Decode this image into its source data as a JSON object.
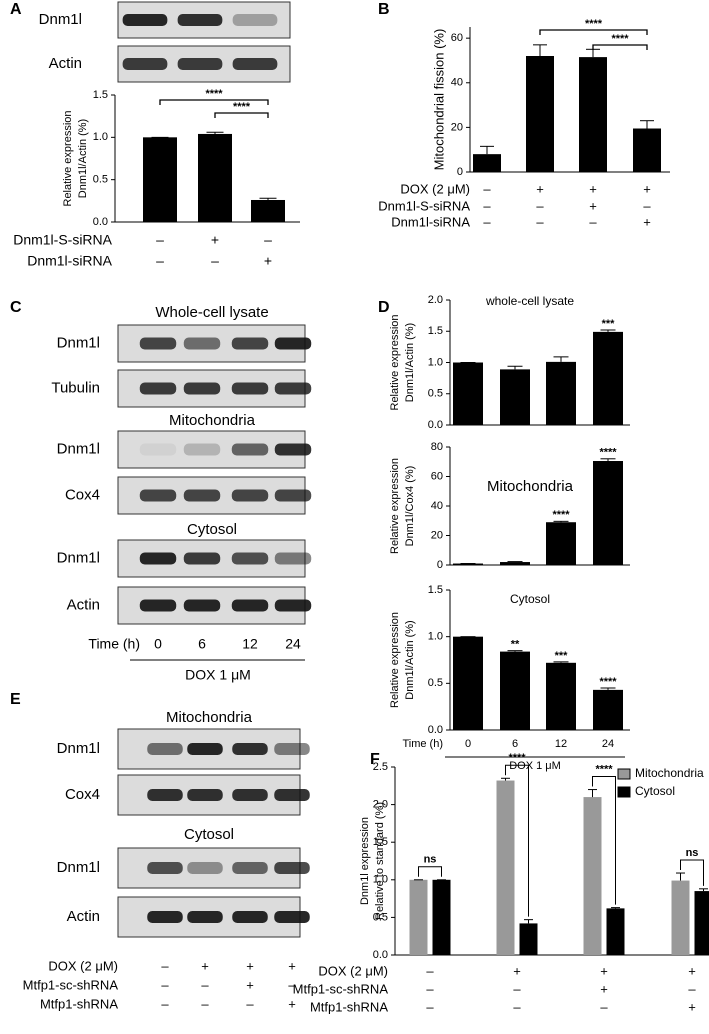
{
  "chart_data": [
    {
      "type": "bar",
      "ylabel": [
        "Relative expression",
        "Dnm1l/Actin (%)"
      ],
      "ylim": [
        0,
        1.5
      ],
      "yticks": [
        {
          "value": 0,
          "label": "0.0"
        },
        {
          "value": 0.5,
          "label": "0.5"
        },
        {
          "value": 1,
          "label": "1.0"
        },
        {
          "value": 1.5,
          "label": "1.5"
        }
      ],
      "values": [
        1.0,
        1.04,
        0.26
      ],
      "errors": [
        0,
        0.02,
        0.02
      ],
      "color": "#000000",
      "brackets": [
        {
          "label": "****",
          "between": [
            0,
            2
          ]
        },
        {
          "label": "****",
          "between": [
            1,
            2
          ]
        }
      ],
      "conditions": [
        {
          "label": "Dnm1l-S-siRNA",
          "signs": [
            "–",
            "+",
            "–"
          ]
        },
        {
          "label": "Dnm1l-siRNA",
          "signs": [
            "–",
            "–",
            "+"
          ]
        }
      ]
    },
    {
      "type": "bar",
      "panel": "B",
      "ylabel": [
        "Mitochondrial fission (%)"
      ],
      "ylim": [
        0,
        65
      ],
      "yticks": [
        0,
        20,
        40,
        60
      ],
      "values": [
        8,
        52,
        51.5,
        19.5
      ],
      "errors": [
        3.5,
        5,
        3.5,
        3.5
      ],
      "color": "#000000",
      "brackets": [
        {
          "label": "****",
          "between": [
            1,
            3
          ]
        },
        {
          "label": "****",
          "between": [
            2,
            3
          ]
        }
      ],
      "conditions": [
        {
          "label": "DOX (2 μM)",
          "signs": [
            "–",
            "+",
            "+",
            "+"
          ]
        },
        {
          "label": "Dnm1l-S-siRNA",
          "signs": [
            "–",
            "–",
            "+",
            "–"
          ]
        },
        {
          "label": "Dnm1l-siRNA",
          "signs": [
            "–",
            "–",
            "–",
            "+"
          ]
        }
      ]
    },
    {
      "type": "bar",
      "panel": "D",
      "title": "whole-cell lysate",
      "ylabel": [
        "Relative expression",
        "Dnm1l/Actin (%)"
      ],
      "ylim": [
        0,
        2
      ],
      "yticks": [
        {
          "value": 0,
          "label": "0.0"
        },
        {
          "value": 0.5,
          "label": "0.5"
        },
        {
          "value": 1,
          "label": "1.0"
        },
        {
          "value": 1.5,
          "label": "1.5"
        },
        {
          "value": 2,
          "label": "2.0"
        }
      ],
      "values": [
        1.0,
        0.89,
        1.01,
        1.49
      ],
      "errors": [
        0,
        0.05,
        0.08,
        0.03
      ],
      "color": "#000000",
      "significance": [
        null,
        null,
        null,
        "***"
      ]
    },
    {
      "type": "bar",
      "title": "Mitochondria",
      "ylabel": [
        "Relative expression",
        "Dnm1l/Cox4 (%)"
      ],
      "ylim": [
        0,
        80
      ],
      "yticks": [
        0,
        20,
        40,
        60,
        80
      ],
      "values": [
        1,
        2,
        29,
        70.5
      ],
      "errors": [
        0,
        0.3,
        0.6,
        1.5
      ],
      "color": "#000000",
      "significance": [
        null,
        null,
        "****",
        "****"
      ]
    },
    {
      "type": "bar",
      "title": "Cytosol",
      "ylabel": [
        "Relative expression",
        "Dnm1l/Actin (%)"
      ],
      "ylim": [
        0,
        1.5
      ],
      "yticks": [
        {
          "value": 0,
          "label": "0.0"
        },
        {
          "value": 0.5,
          "label": "0.5"
        },
        {
          "value": 1,
          "label": "1.0"
        },
        {
          "value": 1.5,
          "label": "1.5"
        }
      ],
      "values": [
        1.0,
        0.84,
        0.72,
        0.43
      ],
      "errors": [
        0,
        0.01,
        0.01,
        0.02
      ],
      "color": "#000000",
      "significance": [
        null,
        "**",
        "***",
        "****"
      ],
      "xlabel": "Time (h)",
      "categories": [
        "0",
        "6",
        "12",
        "24"
      ],
      "footer": "DOX 1 μM"
    },
    {
      "type": "bar",
      "panel": "F",
      "ylabel": [
        "Dnm1l expression",
        "Relative to standard (%)"
      ],
      "ylim": [
        0,
        2.5
      ],
      "yticks": [
        {
          "value": 0,
          "label": "0.0"
        },
        {
          "value": 0.5,
          "label": "0.5"
        },
        {
          "value": 1,
          "label": "1.0"
        },
        {
          "value": 1.5,
          "label": "1.5"
        },
        {
          "value": 2,
          "label": "2.0"
        },
        {
          "value": 2.5,
          "label": "2.5"
        }
      ],
      "series": [
        {
          "name": "Mitochondria",
          "color": "#999999",
          "values": [
            1.0,
            2.32,
            2.1,
            0.99
          ],
          "errors": [
            0,
            0.03,
            0.1,
            0.1
          ]
        },
        {
          "name": "Cytosol",
          "color": "#000000",
          "values": [
            1.0,
            0.42,
            0.62,
            0.85
          ],
          "errors": [
            0,
            0.05,
            0.01,
            0.03
          ]
        }
      ],
      "pair_labels": [
        "ns",
        "****",
        "****",
        "ns"
      ],
      "legend": "top-right",
      "conditions": [
        {
          "label": "DOX (2 μM)",
          "signs": [
            "–",
            "+",
            "+",
            "+"
          ]
        },
        {
          "label": "Mtfp1-sc-shRNA",
          "signs": [
            "–",
            "–",
            "+",
            "–"
          ]
        },
        {
          "label": "Mtfp1-shRNA",
          "signs": [
            "–",
            "–",
            "–",
            "+"
          ]
        }
      ]
    }
  ],
  "blots": [
    {
      "panel": "A",
      "groups": [
        {
          "rows": [
            "Dnm1l",
            "Actin"
          ]
        }
      ]
    },
    {
      "panel": "C",
      "groups": [
        {
          "title": "Whole-cell lysate",
          "rows": [
            "Dnm1l",
            "Tubulin"
          ]
        },
        {
          "title": "Mitochondria",
          "rows": [
            "Dnm1l",
            "Cox4"
          ]
        },
        {
          "title": "Cytosol",
          "rows": [
            "Dnm1l",
            "Actin"
          ]
        }
      ],
      "xlabel": "Time (h)",
      "categories": [
        "0",
        "6",
        "12",
        "24"
      ],
      "footer": "DOX 1 μM"
    },
    {
      "panel": "E",
      "groups": [
        {
          "title": "Mitochondria",
          "rows": [
            "Dnm1l",
            "Cox4"
          ]
        },
        {
          "title": "Cytosol",
          "rows": [
            "Dnm1l",
            "Actin"
          ]
        }
      ],
      "conditions": [
        {
          "label": "DOX (2 μM)",
          "signs": [
            "–",
            "+",
            "+",
            "+"
          ]
        },
        {
          "label": "Mtfp1-sc-shRNA",
          "signs": [
            "–",
            "–",
            "+",
            "–"
          ]
        },
        {
          "label": "Mtfp1-shRNA",
          "signs": [
            "–",
            "–",
            "–",
            "+"
          ]
        }
      ]
    }
  ]
}
